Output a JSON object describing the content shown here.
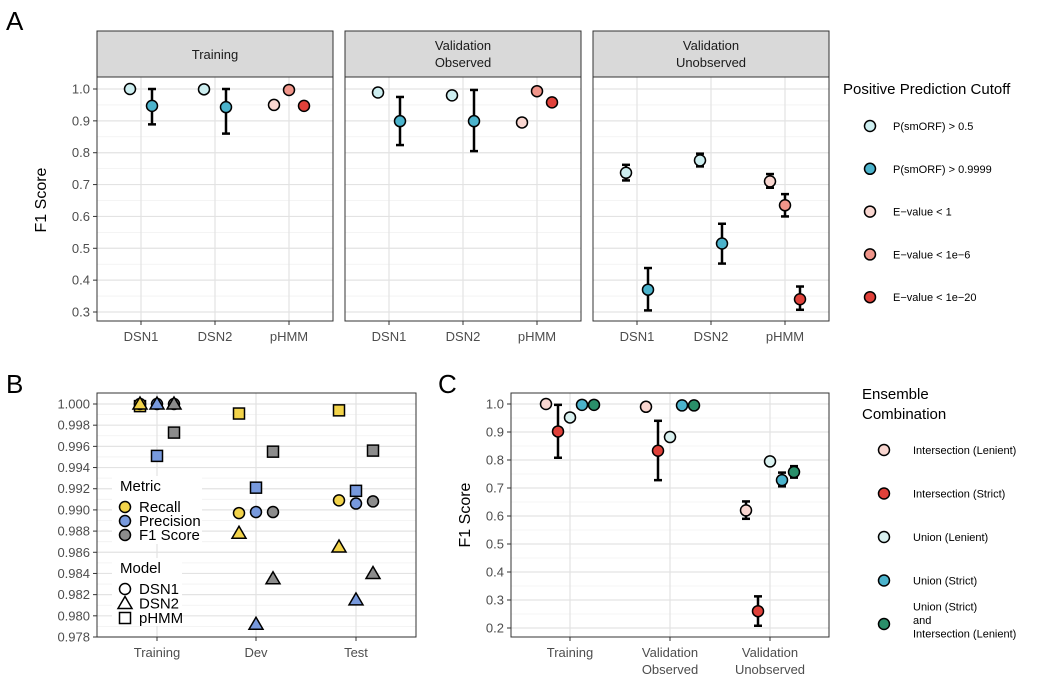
{
  "panel_letters": [
    "A",
    "B",
    "C"
  ],
  "chart_data": [
    {
      "type": "scatter",
      "panel": "A",
      "ylabel": "F1 Score",
      "ylim": [
        0.27,
        1.03
      ],
      "yticks": [
        "0.3",
        "0.4",
        "0.5",
        "0.6",
        "0.7",
        "0.8",
        "0.9",
        "1.0"
      ],
      "facets": [
        [
          "Training"
        ],
        [
          "Validation",
          "Observed"
        ],
        [
          "Validation",
          "Unobserved"
        ]
      ],
      "categories": [
        "DSN1",
        "DSN2",
        "pHMM"
      ],
      "grid": true,
      "legend": {
        "title": "Positive Prediction Cutoff",
        "placement": "right"
      },
      "series": [
        {
          "name": "P(smORF) > 0.5",
          "color": "#cdeef0",
          "points": [
            {
              "facet": 0,
              "x": "DSN1",
              "y": 1.0
            },
            {
              "facet": 0,
              "x": "DSN2",
              "y": 0.999
            },
            {
              "facet": 1,
              "x": "DSN1",
              "y": 0.989
            },
            {
              "facet": 1,
              "x": "DSN2",
              "y": 0.98
            },
            {
              "facet": 2,
              "x": "DSN1",
              "y": 0.737,
              "lo": 0.713,
              "hi": 0.762
            },
            {
              "facet": 2,
              "x": "DSN2",
              "y": 0.776,
              "lo": 0.757,
              "hi": 0.797
            }
          ]
        },
        {
          "name": "P(smORF) > 0.9999",
          "color": "#4bb3cc",
          "points": [
            {
              "facet": 0,
              "x": "DSN1",
              "y": 0.947,
              "lo": 0.889,
              "hi": 1.0
            },
            {
              "facet": 0,
              "x": "DSN2",
              "y": 0.943,
              "lo": 0.86,
              "hi": 1.0
            },
            {
              "facet": 1,
              "x": "DSN1",
              "y": 0.899,
              "lo": 0.824,
              "hi": 0.975
            },
            {
              "facet": 1,
              "x": "DSN2",
              "y": 0.899,
              "lo": 0.805,
              "hi": 0.997
            },
            {
              "facet": 2,
              "x": "DSN1",
              "y": 0.37,
              "lo": 0.305,
              "hi": 0.438
            },
            {
              "facet": 2,
              "x": "DSN2",
              "y": 0.515,
              "lo": 0.452,
              "hi": 0.577
            }
          ]
        },
        {
          "name": "E−value < 1",
          "color": "#f9d6d0",
          "points": [
            {
              "facet": 0,
              "x": "pHMM",
              "y": 0.95
            },
            {
              "facet": 1,
              "x": "pHMM",
              "y": 0.895
            },
            {
              "facet": 2,
              "x": "pHMM",
              "y": 0.71,
              "lo": 0.69,
              "hi": 0.733
            }
          ]
        },
        {
          "name": "E−value < 1e−6",
          "color": "#f0958a",
          "points": [
            {
              "facet": 0,
              "x": "pHMM",
              "y": 0.997
            },
            {
              "facet": 1,
              "x": "pHMM",
              "y": 0.993
            },
            {
              "facet": 2,
              "x": "pHMM",
              "y": 0.635,
              "lo": 0.6,
              "hi": 0.67
            }
          ]
        },
        {
          "name": "E−value < 1e−20",
          "color": "#e0413a",
          "points": [
            {
              "facet": 0,
              "x": "pHMM",
              "y": 0.947
            },
            {
              "facet": 1,
              "x": "pHMM",
              "y": 0.958
            },
            {
              "facet": 2,
              "x": "pHMM",
              "y": 0.34,
              "lo": 0.307,
              "hi": 0.38
            }
          ]
        }
      ]
    },
    {
      "type": "scatter",
      "panel": "B",
      "ylim": [
        0.978,
        1.0
      ],
      "yticks": [
        "0.978",
        "0.980",
        "0.982",
        "0.984",
        "0.986",
        "0.988",
        "0.990",
        "0.992",
        "0.994",
        "0.996",
        "0.998",
        "1.000"
      ],
      "categories": [
        "Training",
        "Dev",
        "Test"
      ],
      "grid": true,
      "legend": {
        "placement": "inside-left",
        "metric_title": "Metric",
        "model_title": "Model"
      },
      "metrics": [
        {
          "name": "Recall",
          "color": "#f2d34a"
        },
        {
          "name": "Precision",
          "color": "#7799dd"
        },
        {
          "name": "F1 Score",
          "color": "#8c8c8c"
        }
      ],
      "models": [
        {
          "name": "DSN1",
          "shape": "circle"
        },
        {
          "name": "DSN2",
          "shape": "triangle"
        },
        {
          "name": "pHMM",
          "shape": "square"
        }
      ],
      "values": {
        "Recall": {
          "DSN1": [
            1.0,
            0.9897,
            0.9909
          ],
          "DSN2": [
            1.0,
            0.9878,
            0.9865
          ],
          "pHMM": [
            0.9998,
            0.9991,
            0.9994
          ]
        },
        "Precision": {
          "DSN1": [
            1.0,
            0.9898,
            0.9906
          ],
          "DSN2": [
            1.0,
            0.9792,
            0.9815
          ],
          "pHMM": [
            0.9951,
            0.9921,
            0.9918
          ]
        },
        "F1 Score": {
          "DSN1": [
            1.0,
            0.9898,
            0.9908
          ],
          "DSN2": [
            1.0,
            0.9835,
            0.984
          ],
          "pHMM": [
            0.9973,
            0.9955,
            0.9956
          ]
        }
      }
    },
    {
      "type": "scatter",
      "panel": "C",
      "ylabel": "F1 Score",
      "ylim": [
        0.19,
        1.03
      ],
      "yticks": [
        "0.2",
        "0.3",
        "0.4",
        "0.5",
        "0.6",
        "0.7",
        "0.8",
        "0.9",
        "1.0"
      ],
      "categories": [
        [
          "Training"
        ],
        [
          "Validation",
          "Observed"
        ],
        [
          "Validation",
          "Unobserved"
        ]
      ],
      "grid": true,
      "legend": {
        "title": [
          "Ensemble",
          "Combination"
        ],
        "placement": "right"
      },
      "series": [
        {
          "name": [
            "Intersection (Lenient)"
          ],
          "color": "#f9d6d0",
          "values": [
            {
              "y": 1.0
            },
            {
              "y": 0.99
            },
            {
              "y": 0.62,
              "lo": 0.59,
              "hi": 0.652
            }
          ]
        },
        {
          "name": [
            "Intersection (Strict)"
          ],
          "color": "#e0413a",
          "values": [
            {
              "y": 0.902,
              "lo": 0.808,
              "hi": 0.997
            },
            {
              "y": 0.833,
              "lo": 0.728,
              "hi": 0.94
            },
            {
              "y": 0.26,
              "lo": 0.208,
              "hi": 0.313
            }
          ]
        },
        {
          "name": [
            "Union (Lenient)"
          ],
          "color": "#d9f1f0",
          "values": [
            {
              "y": 0.952
            },
            {
              "y": 0.882
            },
            {
              "y": 0.795,
              "lo": 0.783,
              "hi": 0.808
            }
          ]
        },
        {
          "name": [
            "Union (Strict)"
          ],
          "color": "#4bb3cc",
          "values": [
            {
              "y": 0.997
            },
            {
              "y": 0.995
            },
            {
              "y": 0.728,
              "lo": 0.706,
              "hi": 0.755
            }
          ]
        },
        {
          "name": [
            "Union (Strict)",
            "and",
            "Intersection (Lenient)"
          ],
          "color": "#2a8f6a",
          "values": [
            {
              "y": 0.997
            },
            {
              "y": 0.995
            },
            {
              "y": 0.757,
              "lo": 0.737,
              "hi": 0.778
            }
          ]
        }
      ]
    }
  ]
}
